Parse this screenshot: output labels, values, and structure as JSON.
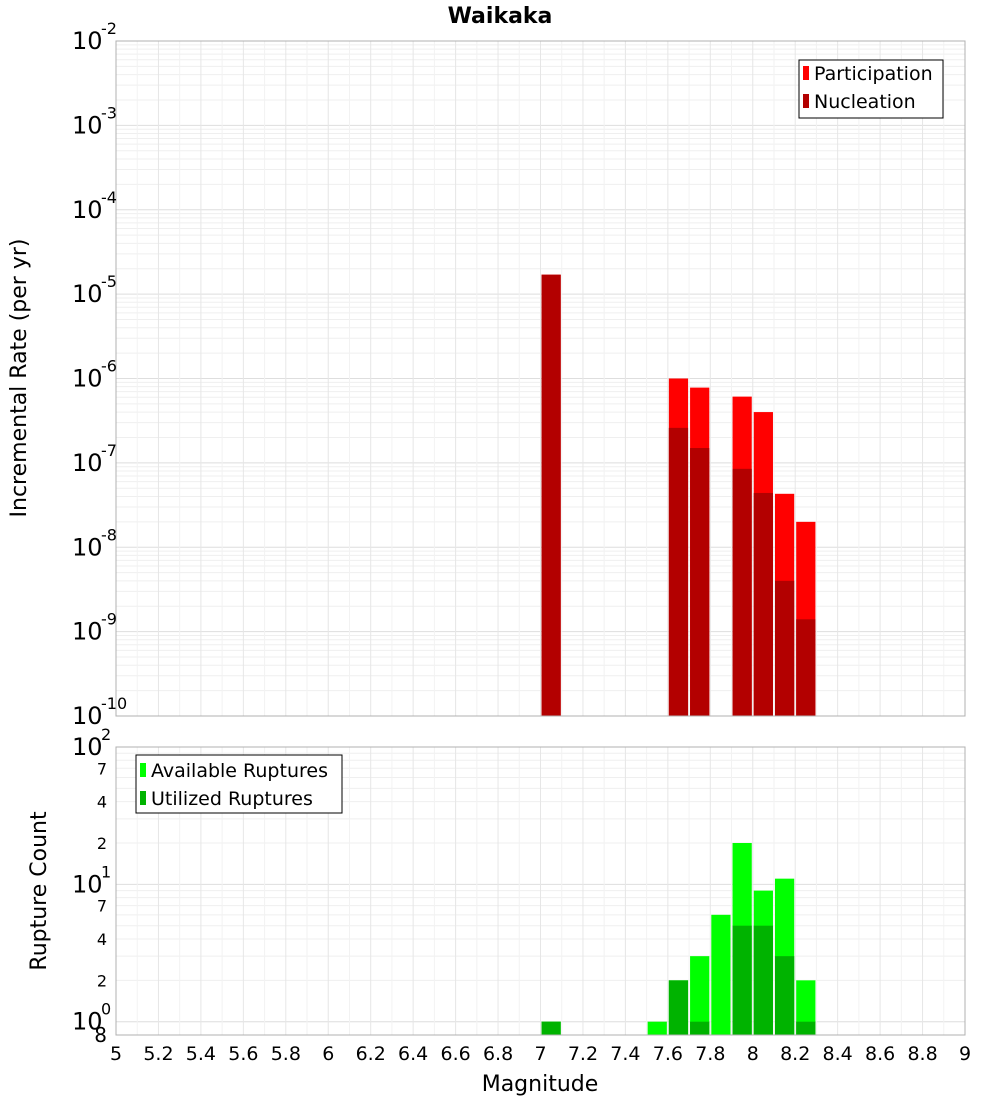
{
  "chart_data": [
    {
      "type": "bar",
      "title": "Waikaka",
      "ylabel": "Incremental Rate (per yr)",
      "xlabel": "",
      "log_y": true,
      "ylim": [
        1e-10,
        0.01
      ],
      "xlim": [
        5,
        9
      ],
      "bar_width": 0.1,
      "y_tick_exponents": [
        "-10",
        "-9",
        "-8",
        "-7",
        "-6",
        "-5",
        "-4",
        "-3",
        "-2"
      ],
      "y_tick_base": "10",
      "legend_position": "top-right",
      "grid": true,
      "series": [
        {
          "name": "Participation",
          "color": "#ff0000",
          "x": [
            7.05,
            7.65,
            7.75,
            7.95,
            8.05,
            8.15,
            8.25
          ],
          "values": [
            1.7e-05,
            1e-06,
            7.8e-07,
            6.1e-07,
            4e-07,
            4.3e-08,
            2e-08
          ]
        },
        {
          "name": "Nucleation",
          "color": "#b30000",
          "x": [
            7.05,
            7.65,
            7.75,
            7.95,
            8.05,
            8.15,
            8.25
          ],
          "values": [
            1.7e-05,
            2.6e-07,
            1.5e-07,
            8.5e-08,
            4.4e-08,
            4e-09,
            1.4e-09
          ]
        }
      ]
    },
    {
      "type": "bar",
      "title": "",
      "ylabel": "Rupture Count",
      "xlabel": "Magnitude",
      "log_y": true,
      "ylim": [
        0.8,
        100
      ],
      "xlim": [
        5,
        9
      ],
      "bar_width": 0.1,
      "x_ticks": [
        "5",
        "5.2",
        "5.4",
        "5.6",
        "5.8",
        "6",
        "6.2",
        "6.4",
        "6.6",
        "6.8",
        "7",
        "7.2",
        "7.4",
        "7.6",
        "7.8",
        "8",
        "8.2",
        "8.4",
        "8.6",
        "8.8",
        "9"
      ],
      "y_major_ticks": [
        {
          "value": 1,
          "base": "10",
          "exp": "0"
        },
        {
          "value": 10,
          "base": "10",
          "exp": "1"
        },
        {
          "value": 100,
          "base": "10",
          "exp": "2"
        }
      ],
      "y_minor_ticks": [
        {
          "value": 2,
          "label": "2"
        },
        {
          "value": 4,
          "label": "4"
        },
        {
          "value": 7,
          "label": "7"
        },
        {
          "value": 20,
          "label": "2"
        },
        {
          "value": 40,
          "label": "4"
        },
        {
          "value": 70,
          "label": "7"
        }
      ],
      "y_bottom_label": "8",
      "legend_position": "top-left",
      "grid": true,
      "series": [
        {
          "name": "Available Ruptures",
          "color": "#00ff00",
          "x": [
            7.05,
            7.55,
            7.65,
            7.75,
            7.85,
            7.95,
            8.05,
            8.15,
            8.25
          ],
          "values": [
            1,
            1,
            2,
            3,
            6,
            20,
            9,
            11,
            2
          ]
        },
        {
          "name": "Utilized Ruptures",
          "color": "#00b300",
          "x": [
            7.05,
            7.65,
            7.75,
            7.95,
            8.05,
            8.15,
            8.25
          ],
          "values": [
            1,
            2,
            1,
            5,
            5,
            3,
            1
          ]
        }
      ]
    }
  ]
}
